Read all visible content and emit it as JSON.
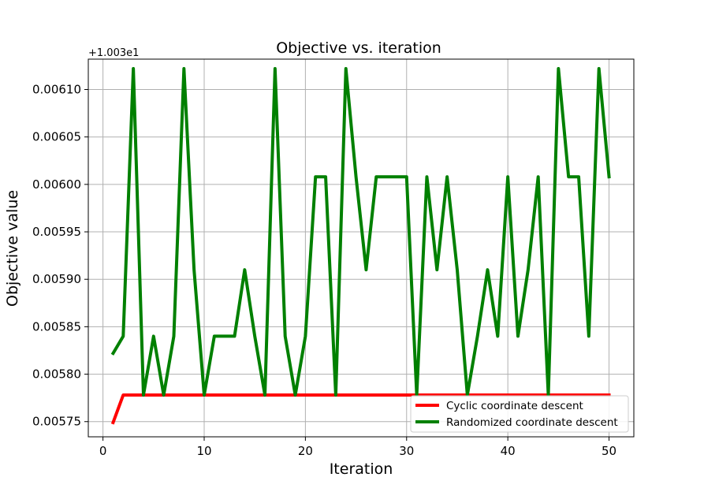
{
  "chart_data": {
    "type": "line",
    "title": "Objective vs. iteration",
    "xlabel": "Iteration",
    "ylabel": "Objective value",
    "y_offset_label": "+1.003e1",
    "xlim": [
      -1.45,
      52.45
    ],
    "ylim": [
      0.005734,
      0.006132
    ],
    "x_ticks": [
      0,
      10,
      20,
      30,
      40,
      50
    ],
    "x_tick_labels": [
      "0",
      "10",
      "20",
      "30",
      "40",
      "50"
    ],
    "y_ticks": [
      0.00575,
      0.0058,
      0.00585,
      0.0059,
      0.00595,
      0.006,
      0.00605,
      0.0061
    ],
    "y_tick_labels": [
      "0.00575",
      "0.00580",
      "0.00585",
      "0.00590",
      "0.00595",
      "0.00600",
      "0.00605",
      "0.00610"
    ],
    "grid": true,
    "legend_position": "lower-right",
    "series": [
      {
        "name": "Cyclic coordinate descent",
        "color": "#ff0000",
        "x": [
          1,
          2,
          3,
          4,
          5,
          6,
          7,
          8,
          9,
          10,
          11,
          12,
          13,
          14,
          15,
          16,
          17,
          18,
          19,
          20,
          21,
          22,
          23,
          24,
          25,
          26,
          27,
          28,
          29,
          30,
          31,
          32,
          33,
          34,
          35,
          36,
          37,
          38,
          39,
          40,
          41,
          42,
          43,
          44,
          45,
          46,
          47,
          48,
          49,
          50
        ],
        "values": [
          0.005749,
          0.005778,
          0.005778,
          0.005778,
          0.005778,
          0.005778,
          0.005778,
          0.005778,
          0.005778,
          0.005778,
          0.005778,
          0.005778,
          0.005778,
          0.005778,
          0.005778,
          0.005778,
          0.005778,
          0.005778,
          0.005778,
          0.005778,
          0.005778,
          0.005778,
          0.005778,
          0.005778,
          0.005778,
          0.005778,
          0.005778,
          0.005778,
          0.005778,
          0.005778,
          0.005778,
          0.005778,
          0.005778,
          0.005778,
          0.005778,
          0.005778,
          0.005778,
          0.005778,
          0.005778,
          0.005778,
          0.005778,
          0.005778,
          0.005778,
          0.005778,
          0.005778,
          0.005778,
          0.005778,
          0.005778,
          0.005778,
          0.005778
        ]
      },
      {
        "name": "Randomized coordinate descent",
        "color": "#008000",
        "x": [
          1,
          2,
          3,
          4,
          5,
          6,
          7,
          8,
          9,
          10,
          11,
          12,
          13,
          14,
          15,
          16,
          17,
          18,
          19,
          20,
          21,
          22,
          23,
          24,
          25,
          26,
          27,
          28,
          29,
          30,
          31,
          32,
          33,
          34,
          35,
          36,
          37,
          38,
          39,
          40,
          41,
          42,
          43,
          44,
          45,
          46,
          47,
          48,
          49,
          50
        ],
        "values": [
          0.005822,
          0.00584,
          0.006122,
          0.005778,
          0.00584,
          0.005778,
          0.00584,
          0.006122,
          0.00591,
          0.005778,
          0.00584,
          0.00584,
          0.00584,
          0.00591,
          0.00584,
          0.005778,
          0.006122,
          0.00584,
          0.005778,
          0.00584,
          0.006008,
          0.006008,
          0.005778,
          0.006122,
          0.006008,
          0.00591,
          0.006008,
          0.006008,
          0.006008,
          0.006008,
          0.005778,
          0.006008,
          0.00591,
          0.006008,
          0.00591,
          0.005778,
          0.00584,
          0.00591,
          0.00584,
          0.006008,
          0.00584,
          0.00591,
          0.006008,
          0.005778,
          0.006122,
          0.006008,
          0.006008,
          0.00584,
          0.006122,
          0.006008
        ]
      }
    ]
  }
}
